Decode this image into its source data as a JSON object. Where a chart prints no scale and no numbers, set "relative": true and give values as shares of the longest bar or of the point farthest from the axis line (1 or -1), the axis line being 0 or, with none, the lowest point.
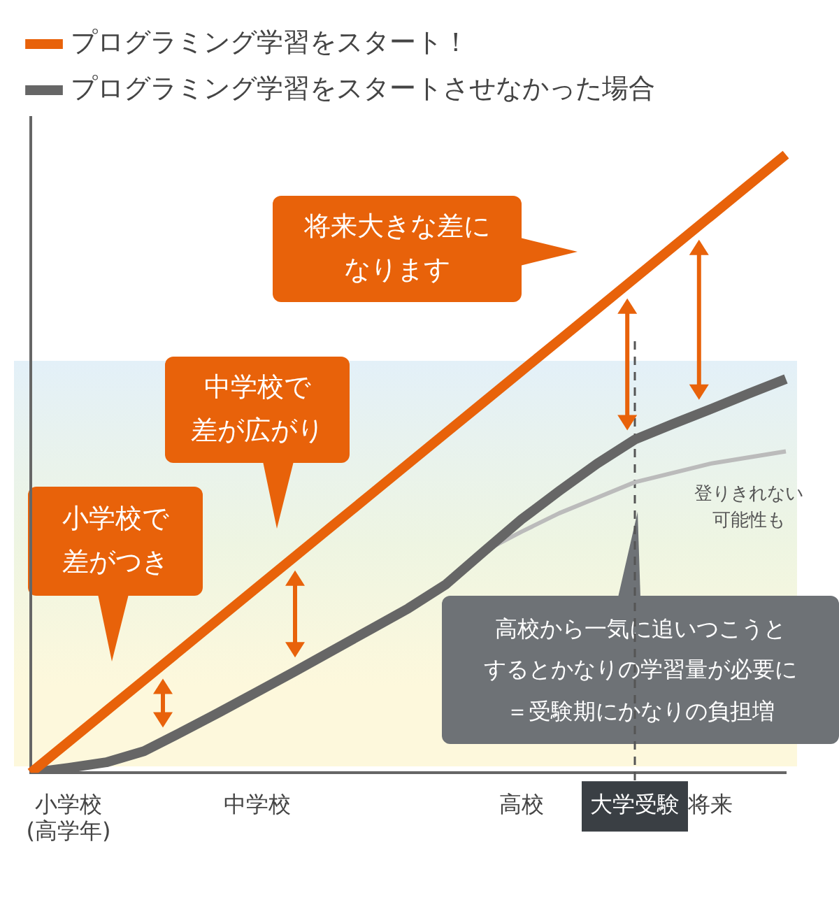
{
  "chart_data": {
    "type": "line",
    "relative": true,
    "legend": "top left",
    "grid": false,
    "marker": "none",
    "line_style": "solid",
    "categories": [
      null,
      "小学校(高学年)",
      null,
      null,
      null,
      null,
      "中学校",
      null,
      null,
      null,
      null,
      null,
      null,
      "高校",
      null,
      null,
      "大学受験",
      null,
      "将来",
      null,
      null
    ],
    "series": [
      {
        "name": "プログラミング学習をスタート！",
        "color": "#e8620a",
        "values": [
          0,
          0.05,
          0.1,
          0.15,
          0.2,
          0.25,
          0.3,
          0.35,
          0.4,
          0.45,
          0.5,
          0.55,
          0.6,
          0.65,
          0.7,
          0.75,
          0.8,
          0.85,
          0.9,
          0.95,
          1
        ]
      },
      {
        "name": "プログラミング学習をスタートさせなかった場合",
        "color": "#666666",
        "values": [
          0,
          0.008,
          0.017,
          0.035,
          0.066,
          0.098,
          0.131,
          0.164,
          0.198,
          0.232,
          0.266,
          0.305,
          0.358,
          0.41,
          0.456,
          0.5,
          0.539,
          0.564,
          0.588,
          0.613,
          0.637
        ]
      },
      {
        "color": "#bbbbbb",
        "values": [
          null,
          null,
          null,
          null,
          null,
          null,
          null,
          null,
          null,
          null,
          null,
          null,
          0.358,
          0.39,
          0.42,
          0.445,
          0.47,
          0.485,
          0.5,
          0.51,
          0.52
        ]
      }
    ],
    "ref_lines": [
      {
        "axis": "x",
        "value": "大学受験",
        "line_style": "dashed",
        "color": "#555555"
      }
    ],
    "annotations": [
      "将来大きな差になります",
      "中学校で差が広がり",
      "小学校で差がつき",
      "高校から一気に追いつこうとするとかなりの学習量が必要に＝受験期にかなりの負担増",
      "登りきれない可能性も"
    ]
  }
}
